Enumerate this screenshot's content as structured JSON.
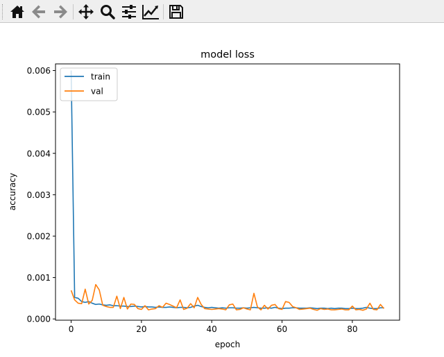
{
  "toolbar": {
    "buttons": [
      {
        "name": "home-icon",
        "icon": "home"
      },
      {
        "name": "back-icon",
        "icon": "arrow-left"
      },
      {
        "name": "forward-icon",
        "icon": "arrow-right"
      },
      {
        "name": "pan-icon",
        "icon": "move"
      },
      {
        "name": "zoom-icon",
        "icon": "magnifier"
      },
      {
        "name": "configure-subplots-icon",
        "icon": "sliders"
      },
      {
        "name": "edit-axis-icon",
        "icon": "line-chart"
      },
      {
        "name": "save-icon",
        "icon": "floppy-disk"
      }
    ]
  },
  "chart_data": {
    "type": "line",
    "title": "model loss",
    "xlabel": "epoch",
    "ylabel": "accuracy",
    "xlim": [
      -4.45,
      93.45
    ],
    "ylim": [
      -3e-05,
      0.00616
    ],
    "xticks": [
      0,
      20,
      40,
      60,
      80
    ],
    "xtick_labels": [
      "0",
      "20",
      "40",
      "60",
      "80"
    ],
    "yticks": [
      0.0,
      0.001,
      0.002,
      0.003,
      0.004,
      0.005,
      0.006
    ],
    "ytick_labels": [
      "0.000",
      "0.001",
      "0.002",
      "0.003",
      "0.004",
      "0.005",
      "0.006"
    ],
    "legend": {
      "placement": "upper-left"
    },
    "grid": false,
    "colors": {
      "train": "#1f77b4",
      "val": "#ff7f0e"
    },
    "series": [
      {
        "name": "train",
        "values": [
          0.006,
          0.00052,
          0.0005,
          0.00042,
          0.0004,
          0.00042,
          0.00038,
          0.00035,
          0.00036,
          0.00034,
          0.00033,
          0.00034,
          0.00032,
          0.00032,
          0.00031,
          0.00031,
          0.0003,
          0.0003,
          0.00031,
          0.0003,
          0.00029,
          0.0003,
          0.00029,
          0.00029,
          0.00028,
          0.00029,
          0.00028,
          0.00028,
          0.00029,
          0.00028,
          0.00027,
          0.00028,
          0.00028,
          0.00027,
          0.00028,
          0.00031,
          0.00033,
          0.0003,
          0.00028,
          0.00027,
          0.00028,
          0.00027,
          0.00026,
          0.00027,
          0.00026,
          0.00027,
          0.00027,
          0.00026,
          0.00026,
          0.00027,
          0.00026,
          0.00027,
          0.00028,
          0.00027,
          0.00026,
          0.00026,
          0.00027,
          0.00026,
          0.00028,
          0.00026,
          0.00025,
          0.00026,
          0.00026,
          0.00027,
          0.00027,
          0.00026,
          0.00026,
          0.00026,
          0.00027,
          0.00026,
          0.00025,
          0.00026,
          0.00026,
          0.00025,
          0.00026,
          0.00025,
          0.00026,
          0.00026,
          0.00025,
          0.00025,
          0.00026,
          0.00025,
          0.00025,
          0.00026,
          0.00028,
          0.00026,
          0.00025,
          0.00025,
          0.00027,
          0.00027
        ]
      },
      {
        "name": "val",
        "values": [
          0.00069,
          0.00046,
          0.00038,
          0.00037,
          0.00072,
          0.00036,
          0.00045,
          0.00083,
          0.0007,
          0.00033,
          0.0003,
          0.00028,
          0.00028,
          0.00055,
          0.00025,
          0.00052,
          0.00024,
          0.00036,
          0.00035,
          0.00025,
          0.00023,
          0.00032,
          0.00022,
          0.00024,
          0.00025,
          0.00032,
          0.00028,
          0.00038,
          0.00035,
          0.00031,
          0.00027,
          0.00046,
          0.00023,
          0.00026,
          0.00037,
          0.00027,
          0.00052,
          0.00035,
          0.00025,
          0.00024,
          0.00023,
          0.00024,
          0.00025,
          0.00024,
          0.00022,
          0.00034,
          0.00036,
          0.00022,
          0.00023,
          0.00027,
          0.00024,
          0.00022,
          0.00062,
          0.00029,
          0.00022,
          0.00033,
          0.00024,
          0.00033,
          0.00035,
          0.00025,
          0.00023,
          0.00042,
          0.0004,
          0.0003,
          0.00027,
          0.00023,
          0.00024,
          0.00025,
          0.00026,
          0.00023,
          0.00021,
          0.00025,
          0.00023,
          0.00024,
          0.00022,
          0.00022,
          0.00023,
          0.00024,
          0.00022,
          0.00022,
          0.00031,
          0.00022,
          0.00023,
          0.00021,
          0.00024,
          0.00038,
          0.00023,
          0.00022,
          0.00035,
          0.00025
        ]
      }
    ]
  }
}
